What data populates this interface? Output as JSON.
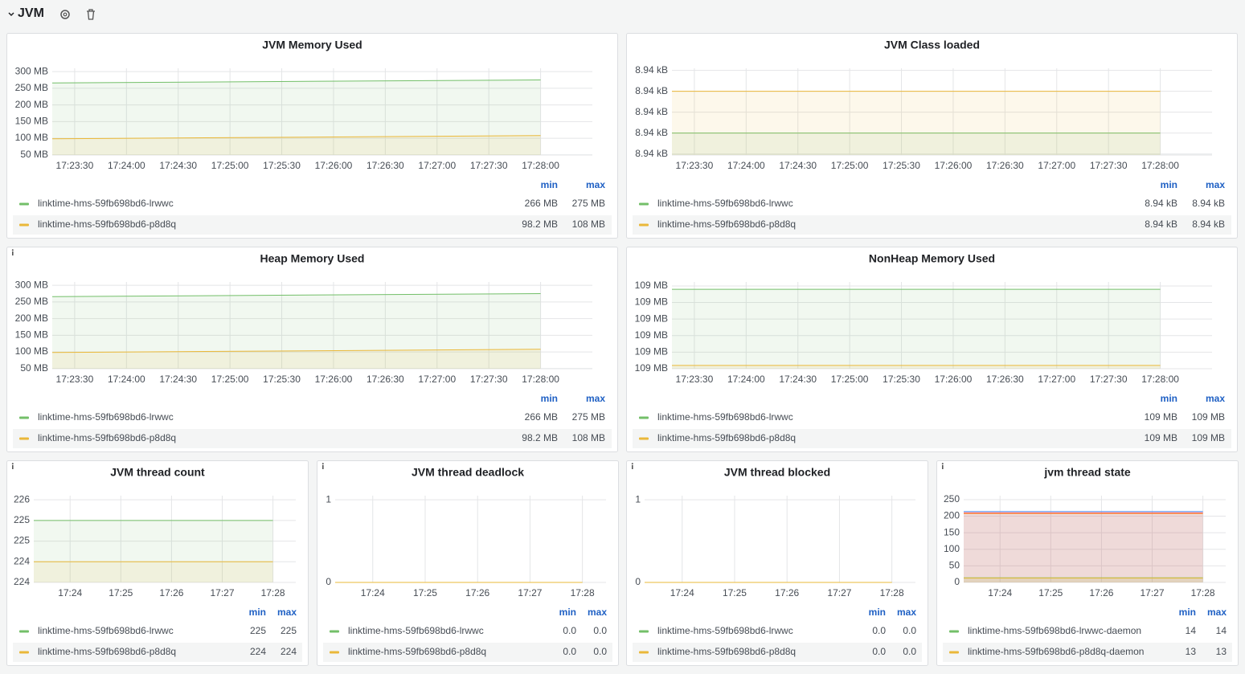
{
  "header": {
    "title": "JVM"
  },
  "chart_data": [
    {
      "type": "line",
      "title": "JVM Memory Used",
      "fill": true,
      "x": [
        62597,
        62880
      ],
      "xlim": [
        62597,
        62910
      ],
      "xticks": [
        {
          "value": 62610,
          "label": "17:23:30"
        },
        {
          "value": 62640,
          "label": "17:24:00"
        },
        {
          "value": 62670,
          "label": "17:24:30"
        },
        {
          "value": 62700,
          "label": "17:25:00"
        },
        {
          "value": 62730,
          "label": "17:25:30"
        },
        {
          "value": 62760,
          "label": "17:26:00"
        },
        {
          "value": 62790,
          "label": "17:26:30"
        },
        {
          "value": 62820,
          "label": "17:27:00"
        },
        {
          "value": 62850,
          "label": "17:27:30"
        },
        {
          "value": 62880,
          "label": "17:28:00"
        }
      ],
      "ylim": [
        49.5,
        310
      ],
      "yticks": [
        {
          "value": 300,
          "label": "300 MB"
        },
        {
          "value": 250,
          "label": "250 MB"
        },
        {
          "value": 200,
          "label": "200 MB"
        },
        {
          "value": 150,
          "label": "150 MB"
        },
        {
          "value": 100,
          "label": "100 MB"
        },
        {
          "value": 50,
          "label": "50 MB"
        }
      ],
      "legend_columns": [
        "min",
        "max"
      ],
      "series": [
        {
          "name": "linktime-hms-59fb698bd6-lrwwc",
          "color": "#73bf69",
          "values": [
            266,
            275
          ],
          "stats": [
            "266 MB",
            "275 MB"
          ]
        },
        {
          "name": "linktime-hms-59fb698bd6-p8d8q",
          "color": "#eab839",
          "values": [
            98.2,
            108
          ],
          "stats": [
            "98.2 MB",
            "108 MB"
          ]
        }
      ]
    },
    {
      "type": "line",
      "title": "JVM Class loaded",
      "fill": true,
      "x": [
        62597,
        62880
      ],
      "xlim": [
        62597,
        62910
      ],
      "xticks": [
        {
          "value": 62610,
          "label": "17:23:30"
        },
        {
          "value": 62640,
          "label": "17:24:00"
        },
        {
          "value": 62670,
          "label": "17:24:30"
        },
        {
          "value": 62700,
          "label": "17:25:00"
        },
        {
          "value": 62730,
          "label": "17:25:30"
        },
        {
          "value": 62760,
          "label": "17:26:00"
        },
        {
          "value": 62790,
          "label": "17:26:30"
        },
        {
          "value": 62820,
          "label": "17:27:00"
        },
        {
          "value": 62850,
          "label": "17:27:30"
        },
        {
          "value": 62880,
          "label": "17:28:00"
        }
      ],
      "ylim": [
        8935.9,
        8944.2
      ],
      "yticks": [
        {
          "value": 8944,
          "label": "8.94 kB"
        },
        {
          "value": 8942,
          "label": "8.94 kB"
        },
        {
          "value": 8940,
          "label": "8.94 kB"
        },
        {
          "value": 8938,
          "label": "8.94 kB"
        },
        {
          "value": 8936,
          "label": "8.94 kB"
        }
      ],
      "legend_columns": [
        "min",
        "max"
      ],
      "series": [
        {
          "name": "linktime-hms-59fb698bd6-lrwwc",
          "color": "#73bf69",
          "values": [
            8938,
            8938
          ],
          "stats": [
            "8.94 kB",
            "8.94 kB"
          ]
        },
        {
          "name": "linktime-hms-59fb698bd6-p8d8q",
          "color": "#eab839",
          "values": [
            8942,
            8942
          ],
          "stats": [
            "8.94 kB",
            "8.94 kB"
          ]
        }
      ]
    },
    {
      "type": "line",
      "title": "Heap Memory Used",
      "fill": true,
      "x": [
        62597,
        62880
      ],
      "xlim": [
        62597,
        62910
      ],
      "xticks": [
        {
          "value": 62610,
          "label": "17:23:30"
        },
        {
          "value": 62640,
          "label": "17:24:00"
        },
        {
          "value": 62670,
          "label": "17:24:30"
        },
        {
          "value": 62700,
          "label": "17:25:00"
        },
        {
          "value": 62730,
          "label": "17:25:30"
        },
        {
          "value": 62760,
          "label": "17:26:00"
        },
        {
          "value": 62790,
          "label": "17:26:30"
        },
        {
          "value": 62820,
          "label": "17:27:00"
        },
        {
          "value": 62850,
          "label": "17:27:30"
        },
        {
          "value": 62880,
          "label": "17:28:00"
        }
      ],
      "ylim": [
        49.5,
        310
      ],
      "yticks": [
        {
          "value": 300,
          "label": "300 MB"
        },
        {
          "value": 250,
          "label": "250 MB"
        },
        {
          "value": 200,
          "label": "200 MB"
        },
        {
          "value": 150,
          "label": "150 MB"
        },
        {
          "value": 100,
          "label": "100 MB"
        },
        {
          "value": 50,
          "label": "50 MB"
        }
      ],
      "legend_columns": [
        "min",
        "max"
      ],
      "series": [
        {
          "name": "linktime-hms-59fb698bd6-lrwwc",
          "color": "#73bf69",
          "values": [
            266,
            275
          ],
          "stats": [
            "266 MB",
            "275 MB"
          ]
        },
        {
          "name": "linktime-hms-59fb698bd6-p8d8q",
          "color": "#eab839",
          "values": [
            98.2,
            108
          ],
          "stats": [
            "98.2 MB",
            "108 MB"
          ]
        }
      ]
    },
    {
      "type": "line",
      "title": "NonHeap Memory Used",
      "fill": true,
      "x": [
        62597,
        62880
      ],
      "xlim": [
        62597,
        62910
      ],
      "xticks": [
        {
          "value": 62610,
          "label": "17:23:30"
        },
        {
          "value": 62640,
          "label": "17:24:00"
        },
        {
          "value": 62670,
          "label": "17:24:30"
        },
        {
          "value": 62700,
          "label": "17:25:00"
        },
        {
          "value": 62730,
          "label": "17:25:30"
        },
        {
          "value": 62760,
          "label": "17:26:00"
        },
        {
          "value": 62790,
          "label": "17:26:30"
        },
        {
          "value": 62820,
          "label": "17:27:00"
        },
        {
          "value": 62850,
          "label": "17:27:30"
        },
        {
          "value": 62880,
          "label": "17:28:00"
        }
      ],
      "ylim": [
        109,
        109.262
      ],
      "yticks": [
        {
          "value": 109.25,
          "label": "109 MB"
        },
        {
          "value": 109.2,
          "label": "109 MB"
        },
        {
          "value": 109.15,
          "label": "109 MB"
        },
        {
          "value": 109.1,
          "label": "109 MB"
        },
        {
          "value": 109.05,
          "label": "109 MB"
        },
        {
          "value": 109,
          "label": "109 MB"
        }
      ],
      "legend_columns": [
        "min",
        "max"
      ],
      "series": [
        {
          "name": "linktime-hms-59fb698bd6-lrwwc",
          "color": "#73bf69",
          "values": [
            109.24,
            109.24
          ],
          "stats": [
            "109 MB",
            "109 MB"
          ]
        },
        {
          "name": "linktime-hms-59fb698bd6-p8d8q",
          "color": "#eab839",
          "values": [
            109.01,
            109.01
          ],
          "stats": [
            "109 MB",
            "109 MB"
          ]
        }
      ]
    },
    {
      "type": "line",
      "title": "JVM thread count",
      "fill": true,
      "x": [
        62597,
        62880
      ],
      "xlim": [
        62597,
        62907
      ],
      "xticks": [
        {
          "value": 62640,
          "label": "17:24"
        },
        {
          "value": 62700,
          "label": "17:25"
        },
        {
          "value": 62760,
          "label": "17:26"
        },
        {
          "value": 62820,
          "label": "17:27"
        },
        {
          "value": 62880,
          "label": "17:28"
        }
      ],
      "ylim": [
        223.5,
        225.6
      ],
      "yticks": [
        {
          "value": 225.5,
          "label": "226"
        },
        {
          "value": 225,
          "label": "225"
        },
        {
          "value": 224.5,
          "label": "225"
        },
        {
          "value": 224,
          "label": "224"
        },
        {
          "value": 223.5,
          "label": "224"
        }
      ],
      "legend_columns": [
        "min",
        "max"
      ],
      "series": [
        {
          "name": "linktime-hms-59fb698bd6-lrwwc",
          "color": "#73bf69",
          "values": [
            225,
            225
          ],
          "stats": [
            "225",
            "225"
          ]
        },
        {
          "name": "linktime-hms-59fb698bd6-p8d8q",
          "color": "#eab839",
          "values": [
            224,
            224
          ],
          "stats": [
            "224",
            "224"
          ]
        }
      ]
    },
    {
      "type": "line",
      "title": "JVM thread deadlock",
      "fill": false,
      "x": [
        62597,
        62880
      ],
      "xlim": [
        62597,
        62907
      ],
      "xticks": [
        {
          "value": 62640,
          "label": "17:24"
        },
        {
          "value": 62700,
          "label": "17:25"
        },
        {
          "value": 62760,
          "label": "17:26"
        },
        {
          "value": 62820,
          "label": "17:27"
        },
        {
          "value": 62880,
          "label": "17:28"
        }
      ],
      "ylim": [
        0,
        1.05
      ],
      "yticks": [
        1,
        0
      ],
      "legend_columns": [
        "min",
        "max"
      ],
      "series": [
        {
          "name": "linktime-hms-59fb698bd6-lrwwc",
          "color": "#73bf69",
          "values": [
            0,
            0
          ],
          "stats": [
            "0.0",
            "0.0"
          ]
        },
        {
          "name": "linktime-hms-59fb698bd6-p8d8q",
          "color": "#eab839",
          "values": [
            0,
            0
          ],
          "stats": [
            "0.0",
            "0.0"
          ]
        }
      ]
    },
    {
      "type": "line",
      "title": "JVM thread blocked",
      "fill": false,
      "x": [
        62597,
        62880
      ],
      "xlim": [
        62597,
        62907
      ],
      "xticks": [
        {
          "value": 62640,
          "label": "17:24"
        },
        {
          "value": 62700,
          "label": "17:25"
        },
        {
          "value": 62760,
          "label": "17:26"
        },
        {
          "value": 62820,
          "label": "17:27"
        },
        {
          "value": 62880,
          "label": "17:28"
        }
      ],
      "ylim": [
        0,
        1.05
      ],
      "yticks": [
        1,
        0
      ],
      "legend_columns": [
        "min",
        "max"
      ],
      "series": [
        {
          "name": "linktime-hms-59fb698bd6-lrwwc",
          "color": "#73bf69",
          "values": [
            0,
            0
          ],
          "stats": [
            "0.0",
            "0.0"
          ]
        },
        {
          "name": "linktime-hms-59fb698bd6-p8d8q",
          "color": "#eab839",
          "values": [
            0,
            0
          ],
          "stats": [
            "0.0",
            "0.0"
          ]
        }
      ]
    },
    {
      "type": "line",
      "title": "jvm thread state",
      "fill": true,
      "x": [
        62597,
        62880
      ],
      "xlim": [
        62597,
        62907
      ],
      "xticks": [
        {
          "value": 62640,
          "label": "17:24"
        },
        {
          "value": 62700,
          "label": "17:25"
        },
        {
          "value": 62760,
          "label": "17:26"
        },
        {
          "value": 62820,
          "label": "17:27"
        },
        {
          "value": 62880,
          "label": "17:28"
        }
      ],
      "ylim": [
        0,
        262
      ],
      "yticks": [
        250,
        200,
        150,
        100,
        50,
        0
      ],
      "legend_columns": [
        "min",
        "max"
      ],
      "series": [
        {
          "color": "#5794f2",
          "values": [
            214,
            214
          ]
        },
        {
          "color": "#f2495c",
          "values": [
            210,
            210
          ]
        },
        {
          "color": "#ff9830",
          "values": [
            208,
            208
          ]
        },
        {
          "name": "linktime-hms-59fb698bd6-lrwwc-daemon",
          "color": "#73bf69",
          "values": [
            14,
            14
          ],
          "stats": [
            "14",
            "14"
          ]
        },
        {
          "name": "linktime-hms-59fb698bd6-p8d8q-daemon",
          "color": "#eab839",
          "values": [
            13,
            13
          ],
          "stats": [
            "13",
            "13"
          ]
        }
      ]
    }
  ]
}
